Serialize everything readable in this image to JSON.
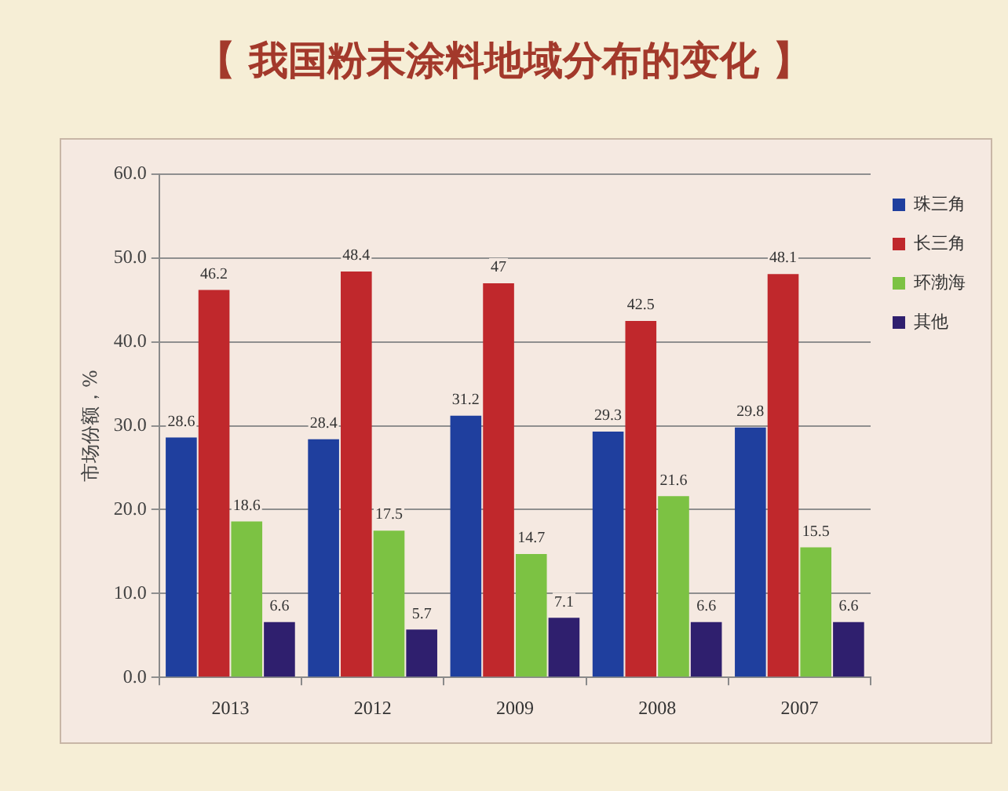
{
  "chart_data": {
    "type": "bar",
    "title": "【 我国粉末涂料地域分布的变化 】",
    "ylabel": "市场份额，%",
    "categories": [
      "2013",
      "2012",
      "2009",
      "2008",
      "2007"
    ],
    "series": [
      {
        "name": "珠三角",
        "color": "#1f3f9e",
        "values": [
          28.6,
          28.4,
          31.2,
          29.3,
          29.8
        ]
      },
      {
        "name": "长三角",
        "color": "#c0282c",
        "values": [
          46.2,
          48.4,
          47,
          42.5,
          48.1
        ]
      },
      {
        "name": "环渤海",
        "color": "#7cc243",
        "values": [
          18.6,
          17.5,
          14.7,
          21.6,
          15.5
        ]
      },
      {
        "name": "其他",
        "color": "#2f1f6e",
        "values": [
          6.6,
          5.7,
          7.1,
          6.6,
          6.6
        ]
      }
    ],
    "ylim": [
      0,
      60
    ],
    "yticks": [
      {
        "value": 0,
        "label": "0.0"
      },
      {
        "value": 10,
        "label": "10.0"
      },
      {
        "value": 20,
        "label": "20.0"
      },
      {
        "value": 30,
        "label": "30.0"
      },
      {
        "value": 40,
        "label": "40.0"
      },
      {
        "value": 50,
        "label": "50.0"
      },
      {
        "value": 60,
        "label": "60.0"
      }
    ],
    "grid": "y",
    "legend": "top right",
    "data_labels": true
  }
}
